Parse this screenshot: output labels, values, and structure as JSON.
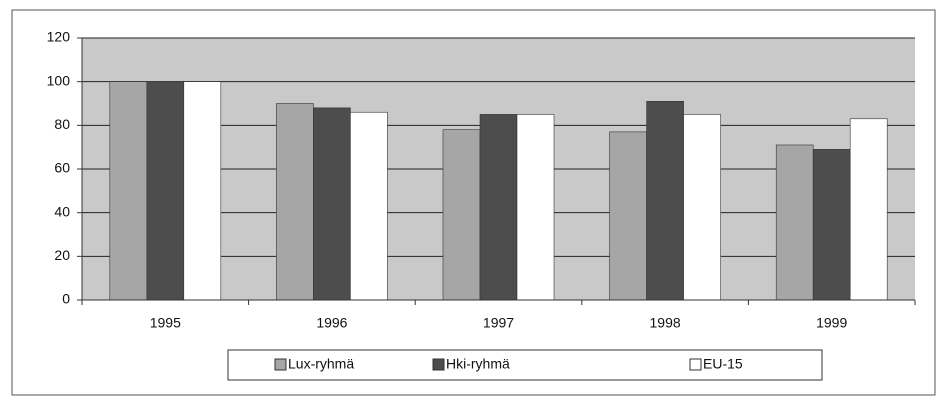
{
  "chart_data": {
    "type": "bar",
    "categories": [
      "1995",
      "1996",
      "1997",
      "1998",
      "1999"
    ],
    "series": [
      {
        "name": "Lux-ryhmä",
        "color": "#a6a6a6",
        "values": [
          100,
          90,
          78,
          77,
          71
        ]
      },
      {
        "name": "Hki-ryhmä",
        "color": "#4d4d4d",
        "values": [
          100,
          88,
          85,
          91,
          69
        ]
      },
      {
        "name": "EU-15",
        "color": "#ffffff",
        "values": [
          100,
          86,
          85,
          85,
          83
        ]
      }
    ],
    "ylim": [
      0,
      120
    ],
    "yticks": [
      0,
      20,
      40,
      60,
      80,
      100,
      120
    ],
    "grid": true,
    "legend": "bottom"
  }
}
